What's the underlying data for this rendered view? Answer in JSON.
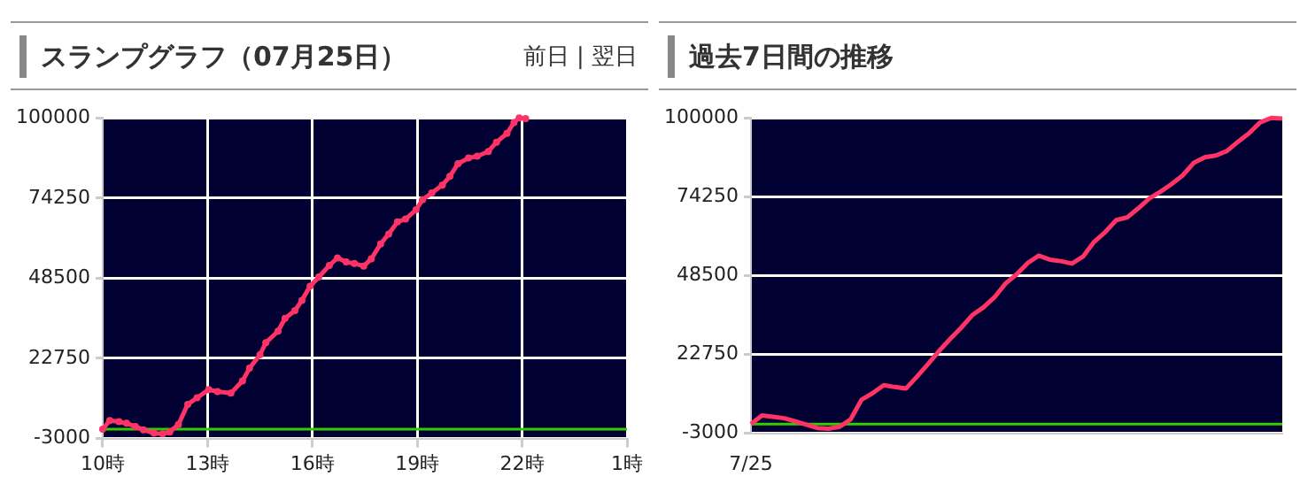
{
  "chart_data": [
    {
      "type": "line",
      "title": "スランプグラフ（07月25日）",
      "annotations": [
        "前日 | 翌日"
      ],
      "x": [
        "--07-25T10:00",
        "--07-25T10:12",
        "--07-25T10:28",
        "--07-25T10:41",
        "--07-25T10:56",
        "--07-25T11:10",
        "--07-25T11:28",
        "--07-25T11:43",
        "--07-25T11:55",
        "--07-25T12:10",
        "--07-25T12:26",
        "--07-25T12:42",
        "--07-25T13:02",
        "--07-25T13:17",
        "--07-25T13:40",
        "--07-25T14:00",
        "--07-25T14:12",
        "--07-25T14:30",
        "--07-25T14:40",
        "--07-25T15:01",
        "--07-25T15:13",
        "--07-25T15:30",
        "--07-25T15:42",
        "--07-25T15:56",
        "--07-25T16:11",
        "--07-25T16:29",
        "--07-25T16:43",
        "--07-25T16:58",
        "--07-25T17:12",
        "--07-25T17:28",
        "--07-25T17:41",
        "--07-25T17:57",
        "--07-25T18:11",
        "--07-25T18:26",
        "--07-25T18:40",
        "--07-25T18:58",
        "--07-25T19:09",
        "--07-25T19:25",
        "--07-25T19:43",
        "--07-25T19:56",
        "--07-25T20:10",
        "--07-25T20:28",
        "--07-25T20:43",
        "--07-25T21:02",
        "--07-25T21:16",
        "--07-25T21:34",
        "--07-25T21:46",
        "--07-25T21:55",
        "--07-25T22:06"
      ],
      "series": [
        {
          "color": "#ff3366",
          "values": [
            0,
            2800,
            2400,
            1900,
            900,
            -200,
            -1300,
            -1500,
            -900,
            1500,
            8000,
            10100,
            12700,
            12100,
            11600,
            15500,
            19600,
            23900,
            27800,
            31500,
            35600,
            38100,
            41400,
            45900,
            48900,
            52600,
            55000,
            53700,
            53200,
            52400,
            54700,
            59500,
            62700,
            66600,
            67500,
            70500,
            73700,
            75900,
            78400,
            81200,
            85300,
            87100,
            87700,
            89200,
            92200,
            95000,
            98500,
            100000,
            99800
          ]
        }
      ],
      "xlim": [
        "--07-25T10:00",
        "--07-26T01:00"
      ],
      "xticks": [
        {
          "value": "--07-25T10:00",
          "label": "10時"
        },
        {
          "value": "--07-25T13:00",
          "label": "13時"
        },
        {
          "value": "--07-25T16:00",
          "label": "16時"
        },
        {
          "value": "--07-25T19:00",
          "label": "19時"
        },
        {
          "value": "--07-25T22:00",
          "label": "22時"
        },
        {
          "value": "--07-26T01:00",
          "label": "1時"
        }
      ],
      "ylim": [
        -3000,
        100000
      ],
      "yticks": [
        -3000,
        22750,
        48500,
        74250,
        100000
      ],
      "ref_lines": [
        {
          "axis": "y",
          "value": 0,
          "color": "#33cc00"
        }
      ],
      "grid": true,
      "legend": false,
      "marker": "circle"
    },
    {
      "type": "line",
      "title": "過去7日間の推移",
      "categories": [
        "7/25",
        null,
        null,
        null,
        null,
        null,
        null,
        null,
        null,
        null,
        null,
        null,
        null,
        null,
        null,
        null,
        null,
        null,
        null,
        null,
        null,
        null,
        null,
        null,
        null,
        null,
        null,
        null,
        null,
        null,
        null,
        null,
        null,
        null,
        null,
        null,
        null,
        null,
        null,
        null,
        null,
        null,
        null,
        null,
        null,
        null,
        null,
        null,
        null
      ],
      "series": [
        {
          "color": "#ff3366",
          "values": [
            0,
            2800,
            2400,
            1900,
            900,
            -200,
            -1300,
            -1500,
            -900,
            1500,
            8000,
            10100,
            12700,
            12100,
            11600,
            15500,
            19600,
            23900,
            27800,
            31500,
            35600,
            38100,
            41400,
            45900,
            48900,
            52600,
            55000,
            53700,
            53200,
            52400,
            54700,
            59500,
            62700,
            66600,
            67500,
            70500,
            73700,
            75900,
            78400,
            81200,
            85300,
            87100,
            87700,
            89200,
            92200,
            95000,
            98500,
            100000,
            99800
          ]
        }
      ],
      "ylim": [
        -3000,
        100000
      ],
      "yticks": [
        -3000,
        22750,
        48500,
        74250,
        100000
      ],
      "ref_lines": [
        {
          "axis": "y",
          "value": 0,
          "color": "#33cc00"
        }
      ],
      "grid": "y",
      "legend": false,
      "marker": "none"
    }
  ]
}
